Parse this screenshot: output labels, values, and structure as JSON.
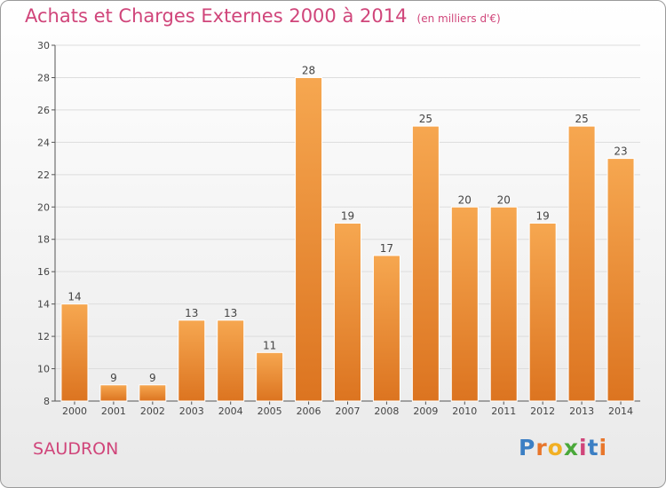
{
  "chart_data": {
    "type": "bar",
    "title": "Achats et Charges Externes 2000 à 2014",
    "subtitle": "(en milliers d'€)",
    "categories": [
      "2000",
      "2001",
      "2002",
      "2003",
      "2004",
      "2005",
      "2006",
      "2007",
      "2008",
      "2009",
      "2010",
      "2011",
      "2012",
      "2013",
      "2014"
    ],
    "values": [
      14,
      9,
      9,
      13,
      13,
      11,
      28,
      19,
      17,
      25,
      20,
      20,
      19,
      25,
      23
    ],
    "ylim": [
      8,
      30
    ],
    "yticks": [
      8,
      10,
      12,
      14,
      16,
      18,
      20,
      22,
      24,
      26,
      28,
      30
    ],
    "grid": true,
    "bar_color": "#f0953e",
    "title_color": "#d0457a"
  },
  "commune": "SAUDRON",
  "logo": {
    "letters": [
      "P",
      "r",
      "o",
      "x",
      "i",
      "t",
      "i"
    ],
    "colors": [
      "#3c7fc4",
      "#e8762b",
      "#f2b024",
      "#4aa83a",
      "#d0457a",
      "#3c7fc4",
      "#e8762b"
    ]
  }
}
